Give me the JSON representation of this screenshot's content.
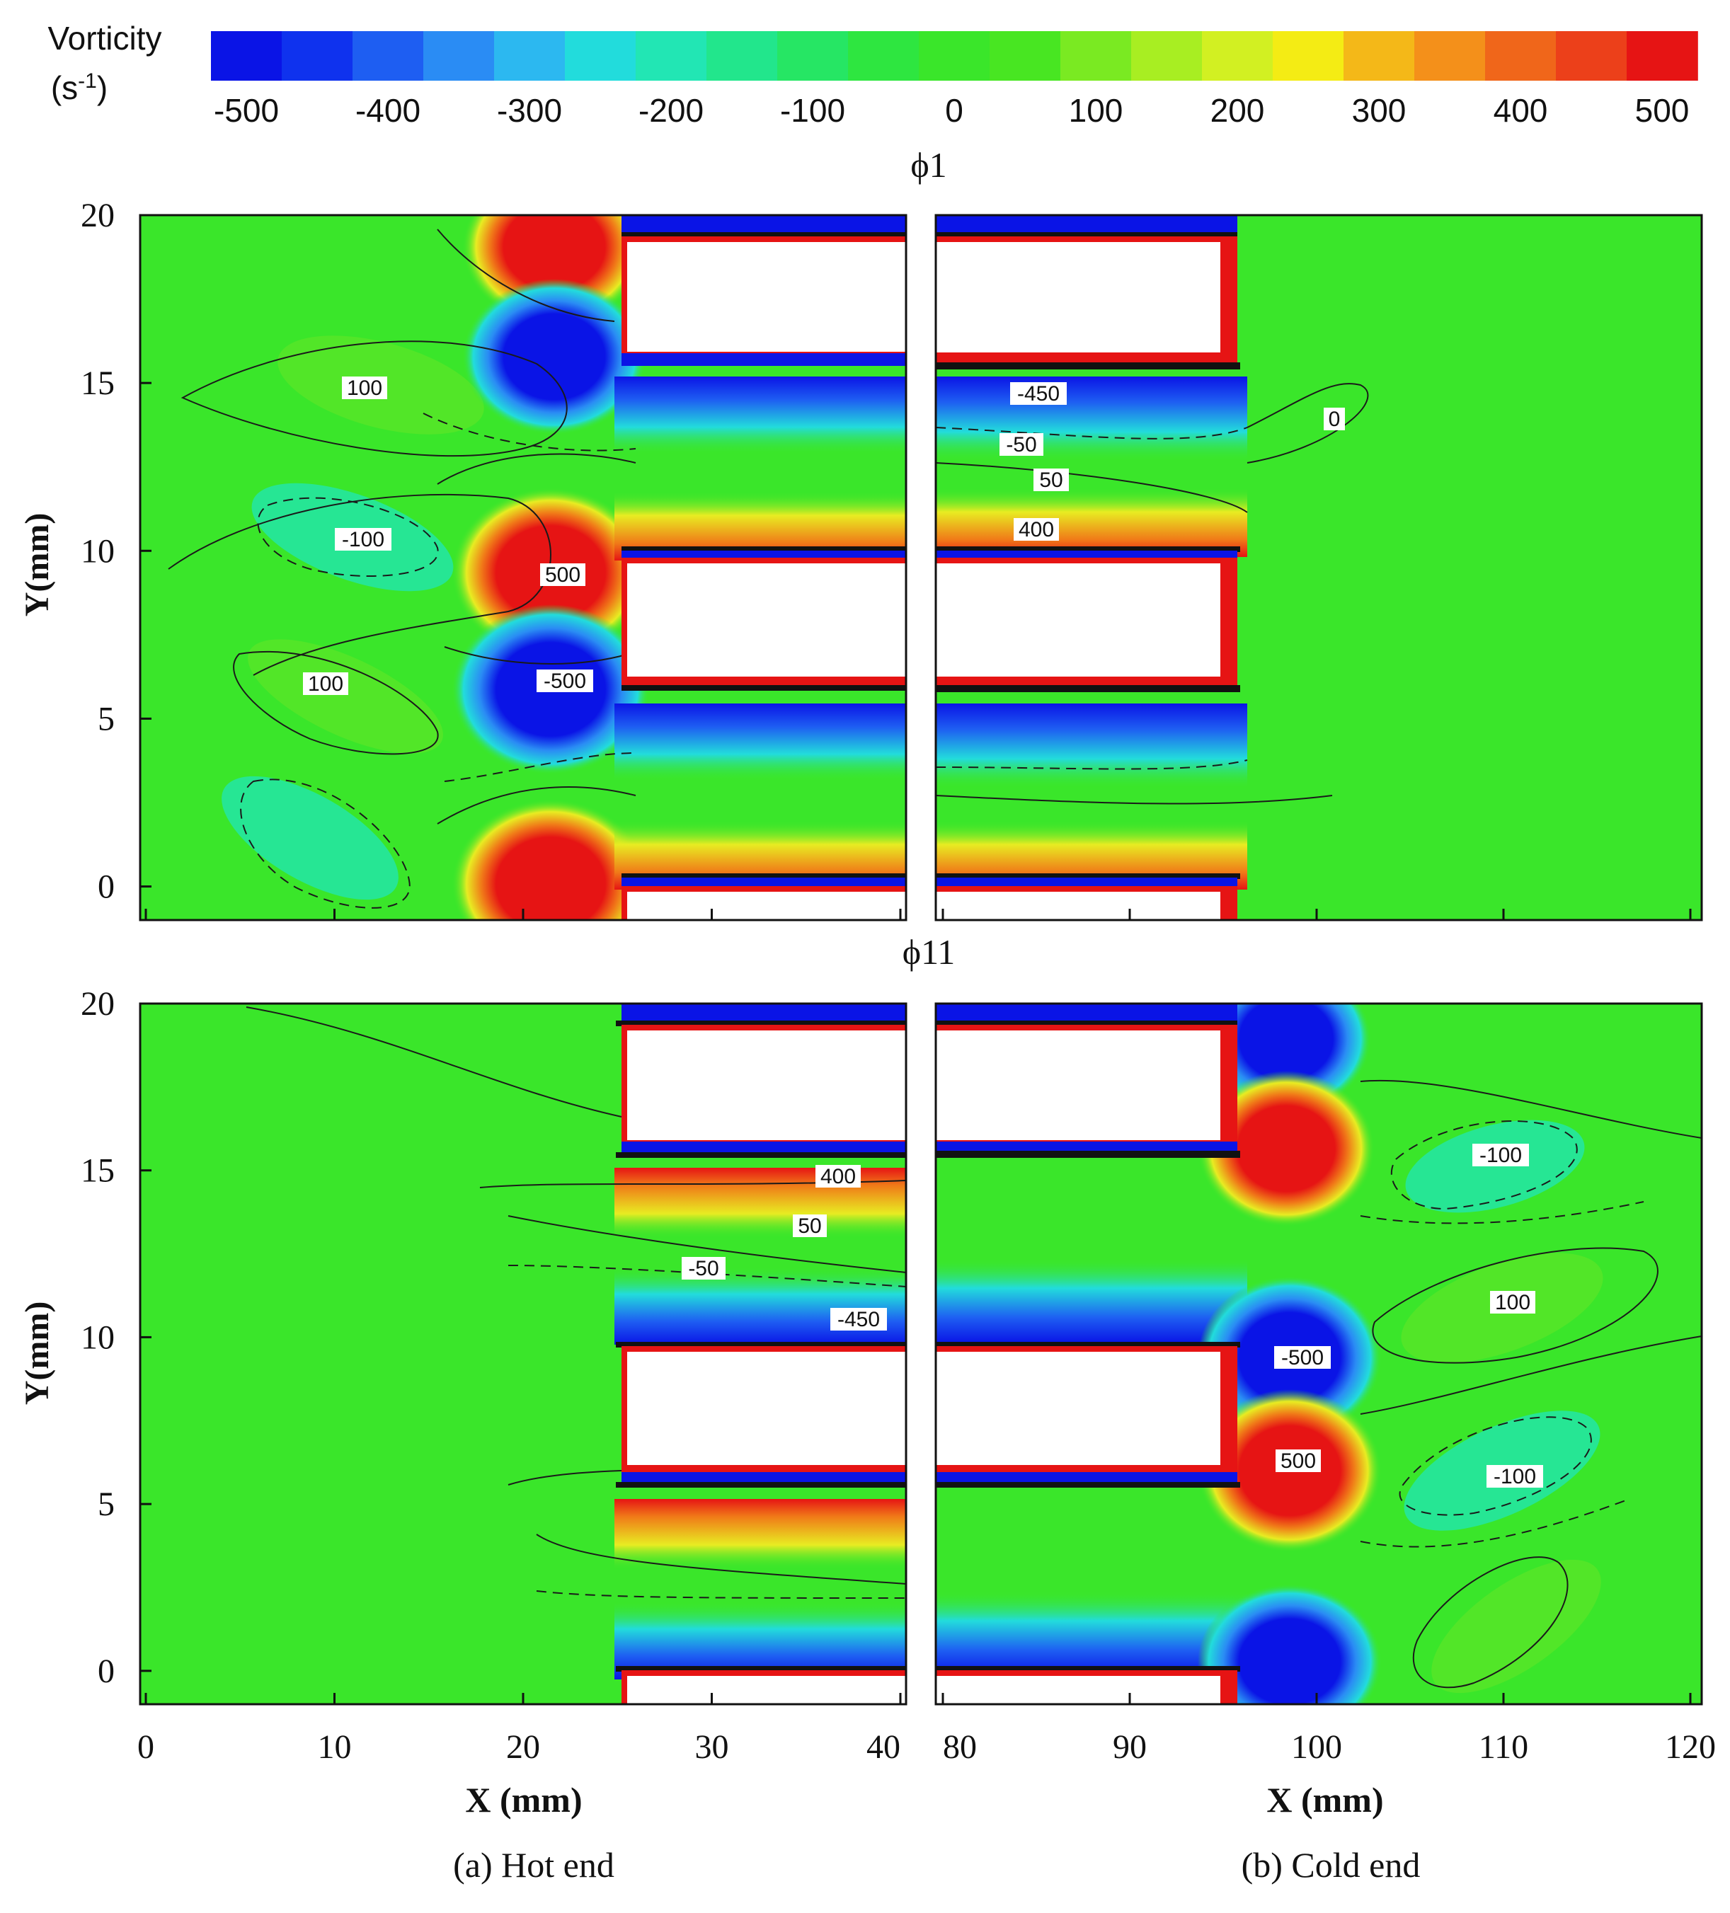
{
  "colorbar": {
    "title": "Vorticity",
    "unit_base": "(s",
    "unit_exp": "-1",
    "unit_close": ")",
    "ticks": [
      "-500",
      "-400",
      "-300",
      "-200",
      "-100",
      "0",
      "100",
      "200",
      "300",
      "400",
      "500"
    ],
    "colors": [
      "#0a14e6",
      "#0f32ee",
      "#1e5ef2",
      "#2a8cf4",
      "#2cb8f0",
      "#22dcdc",
      "#22e6b4",
      "#22e68c",
      "#26e664",
      "#2ee640",
      "#3ae62a",
      "#48e622",
      "#7aea22",
      "#a8ee22",
      "#d2f022",
      "#f4ec14",
      "#f4b818",
      "#f4901a",
      "#f0661a",
      "#ec401a",
      "#e61414"
    ]
  },
  "rows": [
    {
      "title": "ϕ1",
      "ylabel": "Y(mm)",
      "contour_labels_left": [
        "100",
        "-100",
        "500",
        "-500",
        "100"
      ],
      "contour_labels_right": [
        "-450",
        "-50",
        "50",
        "400",
        "0"
      ]
    },
    {
      "title": "ϕ11",
      "ylabel": "Y(mm)",
      "contour_labels_left": [
        "400",
        "50",
        "-50",
        "-450"
      ],
      "contour_labels_right": [
        "-100",
        "100",
        "-500",
        "500",
        "-100"
      ]
    }
  ],
  "axes": {
    "y_ticks": [
      "0",
      "5",
      "10",
      "15",
      "20"
    ],
    "x_ticks_left": [
      "0",
      "10",
      "20",
      "30",
      "40"
    ],
    "x_ticks_right": [
      "80",
      "90",
      "100",
      "110",
      "120"
    ],
    "xlabel": "X (mm)"
  },
  "captions": {
    "left": "(a) Hot end",
    "right": "(b) Cold end"
  },
  "chart_data": {
    "type": "heatmap",
    "title": "",
    "colorbar_label": "Vorticity (s-1)",
    "color_range": [
      -500,
      500
    ],
    "colorbar_ticks": [
      -500,
      -400,
      -300,
      -200,
      -100,
      0,
      100,
      200,
      300,
      400,
      500
    ],
    "panels": [
      {
        "row": "ϕ1",
        "column": "(a) Hot end",
        "xlim": [
          0,
          40
        ],
        "ylim": [
          -1,
          20
        ],
        "contour_labels": [
          100,
          -100,
          500,
          -500,
          100
        ]
      },
      {
        "row": "ϕ1",
        "column": "(b) Cold end",
        "xlim": [
          80,
          120
        ],
        "ylim": [
          -1,
          20
        ],
        "contour_labels": [
          -450,
          -50,
          50,
          400,
          0
        ]
      },
      {
        "row": "ϕ11",
        "column": "(a) Hot end",
        "xlim": [
          0,
          40
        ],
        "ylim": [
          -1,
          20
        ],
        "contour_labels": [
          400,
          50,
          -50,
          -450
        ]
      },
      {
        "row": "ϕ11",
        "column": "(b) Cold end",
        "xlim": [
          80,
          120
        ],
        "ylim": [
          -1,
          20
        ],
        "contour_labels": [
          -100,
          100,
          -500,
          500,
          -100
        ]
      }
    ],
    "xlabel": "X (mm)",
    "ylabel": "Y(mm)"
  }
}
